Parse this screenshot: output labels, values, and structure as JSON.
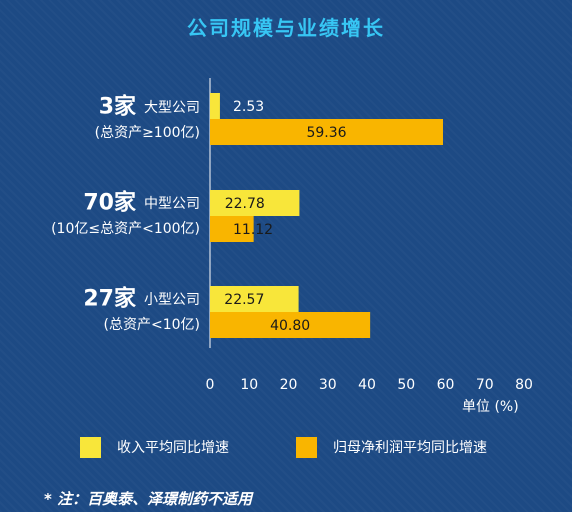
{
  "chart_data": {
    "type": "bar",
    "orientation": "horizontal",
    "title": "公司规模与业绩增长",
    "xlim": [
      0,
      80
    ],
    "x_ticks": [
      "0",
      "10",
      "20",
      "30",
      "40",
      "50",
      "60",
      "70",
      "80"
    ],
    "unit_label": "单位 (%)",
    "categories": [
      {
        "count": "3家",
        "name": "大型公司",
        "note": "(总资产≥100亿)"
      },
      {
        "count": "70家",
        "name": "中型公司",
        "note": "(10亿≤总资产<100亿)"
      },
      {
        "count": "27家",
        "name": "小型公司",
        "note": "(总资产<10亿)"
      }
    ],
    "series": [
      {
        "name": "收入平均同比增速",
        "color": "#f8e63a",
        "values": [
          2.53,
          22.78,
          22.57
        ],
        "labels": [
          "2.53",
          "22.78",
          "22.57"
        ]
      },
      {
        "name": "归母净利润平均同比增速",
        "color": "#f9b500",
        "values": [
          59.36,
          11.12,
          40.8
        ],
        "labels": [
          "59.36",
          "11.12",
          "40.80"
        ]
      }
    ],
    "legend_position": "bottom",
    "grid": false
  },
  "footnote": "* 注：百奥泰、泽璟制药不适用"
}
